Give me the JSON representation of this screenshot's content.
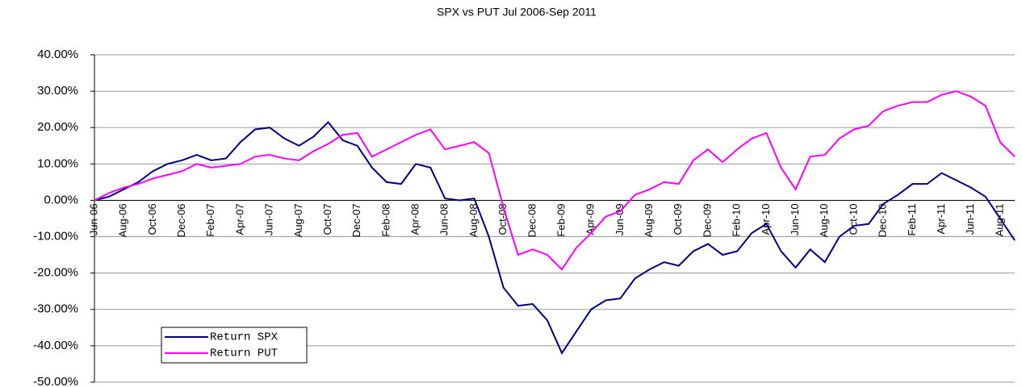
{
  "chart_data": {
    "type": "line",
    "title": "SPX vs PUT Jul 2006-Sep 2011",
    "categories": [
      "Jun-06",
      null,
      "Aug-06",
      null,
      "Oct-06",
      null,
      "Dec-06",
      null,
      "Feb-07",
      null,
      "Apr-07",
      null,
      "Jun-07",
      null,
      "Aug-07",
      null,
      "Oct-07",
      null,
      "Dec-07",
      null,
      "Feb-08",
      null,
      "Apr-08",
      null,
      "Jun-08",
      null,
      "Aug-08",
      null,
      "Oct-08",
      null,
      "Dec-08",
      null,
      "Feb-09",
      null,
      "Apr-09",
      null,
      "Jun-09",
      null,
      "Aug-09",
      null,
      "Oct-09",
      null,
      "Dec-09",
      null,
      "Feb-10",
      null,
      "Apr-10",
      null,
      "Jun-10",
      null,
      "Aug-10",
      null,
      "Oct-10",
      null,
      "Dec-10",
      null,
      "Feb-11",
      null,
      "Apr-11",
      null,
      "Jun-11",
      null,
      "Aug-11",
      null
    ],
    "series": [
      {
        "name": "Return SPX",
        "color": "#000080",
        "values": [
          0,
          1,
          3,
          5,
          8,
          10,
          11,
          12.5,
          11,
          11.5,
          16,
          19.5,
          20,
          17,
          15,
          17.5,
          21.5,
          16.5,
          15,
          9,
          5,
          4.5,
          10,
          9,
          0.5,
          0,
          0.5,
          -10,
          -24,
          -29,
          -28.5,
          -33,
          -42,
          -36,
          -30,
          -27.5,
          -27,
          -21.5,
          -19,
          -17,
          -18,
          -14,
          -12,
          -15,
          -14,
          -9,
          -6.5,
          -14,
          -18.5,
          -13.5,
          -17,
          -10,
          -7,
          -6.5,
          -1,
          1.5,
          4.5,
          4.5,
          7.5,
          5.5,
          3.5,
          1,
          -5,
          -11
        ]
      },
      {
        "name": "Return PUT",
        "color": "#ff00ff",
        "values": [
          0,
          2,
          3.5,
          4.5,
          6,
          7,
          8,
          10,
          9,
          9.5,
          10,
          12,
          12.5,
          11.5,
          11,
          13.5,
          15.5,
          18,
          18.5,
          12,
          14,
          16,
          18,
          19.5,
          14,
          15,
          16,
          13,
          -2,
          -15,
          -13.5,
          -15,
          -19,
          -13,
          -9,
          -4.5,
          -3,
          1.5,
          3,
          5,
          4.5,
          11,
          14,
          10.5,
          14,
          17,
          18.5,
          9,
          3,
          12,
          12.5,
          17,
          19.5,
          20.5,
          24.5,
          26,
          27,
          27,
          29,
          30,
          28.5,
          26,
          16,
          12
        ]
      }
    ],
    "ylim": [
      -50,
      40
    ],
    "yticks": [
      {
        "value": -50,
        "label": "-50.00%"
      },
      {
        "value": -40,
        "label": "-40.00%"
      },
      {
        "value": -30,
        "label": "-30.00%"
      },
      {
        "value": -20,
        "label": "-20.00%"
      },
      {
        "value": -10,
        "label": "-10.00%"
      },
      {
        "value": 0,
        "label": "0.00%"
      },
      {
        "value": 10,
        "label": "10.00%"
      },
      {
        "value": 20,
        "label": "20.00%"
      },
      {
        "value": 30,
        "label": "30.00%"
      },
      {
        "value": 40,
        "label": "40.00%"
      }
    ],
    "grid": true,
    "legend": "lower-left"
  }
}
